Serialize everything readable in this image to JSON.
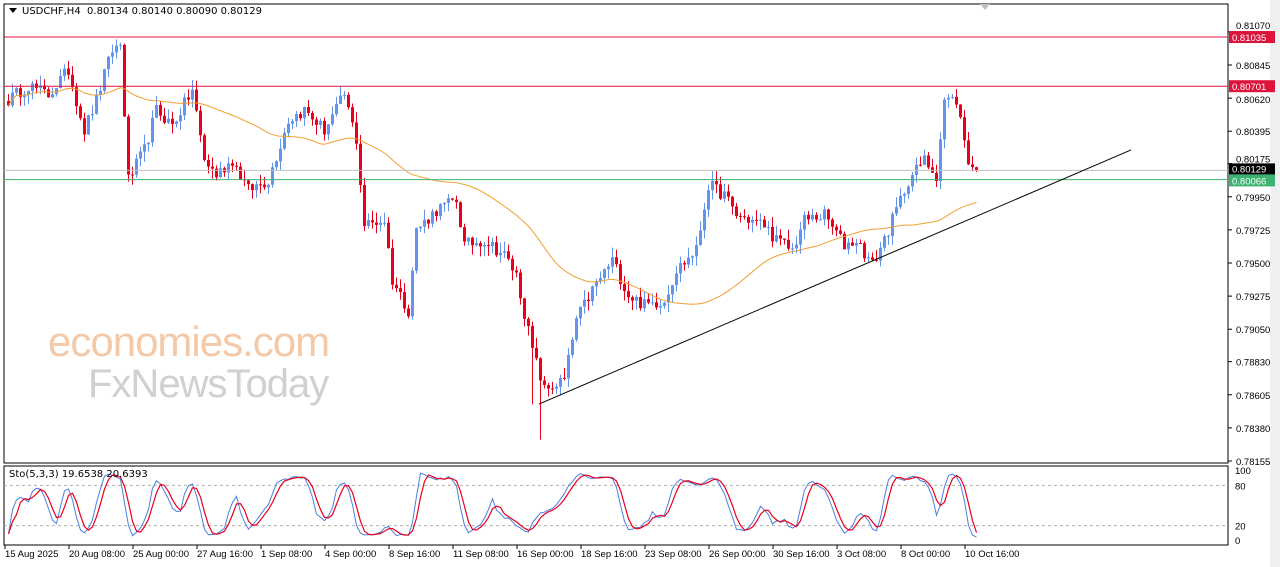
{
  "header": {
    "symbol": "USDCHF,H4",
    "ohlc": "0.80134 0.80140 0.80090 0.80129"
  },
  "stochastic": {
    "label": "Sto(5,3,3) 19.6538 20.6393",
    "levels": [
      "100",
      "80",
      "20",
      "0"
    ]
  },
  "watermark": {
    "line1": "economies.com",
    "line2": "FxNewsToday"
  },
  "colors": {
    "up": "#6495ed",
    "down": "#e8001c",
    "ma": "#f0a030",
    "resistance": "#dc143c",
    "support": "#3cb371",
    "trendline": "#000000",
    "sto_main": "#4a7fe0",
    "sto_signal": "#e8001c"
  },
  "chart_data": {
    "type": "candlestick",
    "symbol": "USDCHF",
    "timeframe": "H4",
    "y_ticks": [
      "0.81070",
      "0.80845",
      "0.80620",
      "0.80395",
      "0.80175",
      "0.79950",
      "0.79725",
      "0.79500",
      "0.79275",
      "0.79050",
      "0.78830",
      "0.78605",
      "0.78380",
      "0.78155"
    ],
    "ylim": [
      0.7812,
      0.8115
    ],
    "x_tick_labels": [
      "15 Aug 2025",
      "20 Aug 08:00",
      "25 Aug 00:00",
      "27 Aug 16:00",
      "1 Sep 08:00",
      "4 Sep 00:00",
      "8 Sep 16:00",
      "11 Sep 08:00",
      "16 Sep 00:00",
      "18 Sep 16:00",
      "23 Sep 08:00",
      "26 Sep 00:00",
      "30 Sep 16:00",
      "3 Oct 08:00",
      "8 Oct 00:00",
      "10 Oct 16:00"
    ],
    "close_path_by_bar": [
      [
        0,
        0.80607
      ],
      [
        5,
        0.80709
      ],
      [
        10,
        0.80641
      ],
      [
        15,
        0.80811
      ],
      [
        19,
        0.80403
      ],
      [
        22,
        0.80607
      ],
      [
        26,
        0.80947
      ],
      [
        28,
        0.80981
      ],
      [
        30,
        0.80064
      ],
      [
        34,
        0.80268
      ],
      [
        37,
        0.80539
      ],
      [
        41,
        0.80437
      ],
      [
        46,
        0.80675
      ],
      [
        49,
        0.802
      ],
      [
        52,
        0.80098
      ],
      [
        56,
        0.802
      ],
      [
        60,
        0.79996
      ],
      [
        65,
        0.80064
      ],
      [
        70,
        0.80471
      ],
      [
        74,
        0.80539
      ],
      [
        79,
        0.80403
      ],
      [
        84,
        0.80641
      ],
      [
        87,
        0.80336
      ],
      [
        89,
        0.79758
      ],
      [
        94,
        0.79792
      ],
      [
        96,
        0.79385
      ],
      [
        100,
        0.79181
      ],
      [
        102,
        0.79724
      ],
      [
        107,
        0.7986
      ],
      [
        112,
        0.79928
      ],
      [
        114,
        0.79622
      ],
      [
        119,
        0.79656
      ],
      [
        124,
        0.79554
      ],
      [
        127,
        0.79418
      ],
      [
        131,
        0.78909
      ],
      [
        134,
        0.78637
      ],
      [
        139,
        0.78705
      ],
      [
        142,
        0.79113
      ],
      [
        146,
        0.79317
      ],
      [
        151,
        0.7952
      ],
      [
        155,
        0.79283
      ],
      [
        159,
        0.79215
      ],
      [
        164,
        0.79249
      ],
      [
        167,
        0.79452
      ],
      [
        172,
        0.79588
      ],
      [
        175,
        0.8003
      ],
      [
        179,
        0.79962
      ],
      [
        182,
        0.79826
      ],
      [
        189,
        0.79758
      ],
      [
        192,
        0.79656
      ],
      [
        196,
        0.79588
      ],
      [
        199,
        0.79792
      ],
      [
        204,
        0.79826
      ],
      [
        209,
        0.79622
      ],
      [
        212,
        0.79656
      ],
      [
        216,
        0.79486
      ],
      [
        220,
        0.79724
      ],
      [
        225,
        0.80064
      ],
      [
        229,
        0.802
      ],
      [
        232,
        0.80098
      ],
      [
        234,
        0.80607
      ],
      [
        237,
        0.80607
      ],
      [
        240,
        0.802
      ],
      [
        242,
        0.80118
      ]
    ],
    "last_price": "0.80129",
    "horizontal_levels": [
      {
        "price": 0.81035,
        "label": "0.81035",
        "kind": "resistance"
      },
      {
        "price": 0.80701,
        "label": "0.80701",
        "kind": "resistance"
      },
      {
        "price": 0.80066,
        "label": "0.80066",
        "kind": "support"
      }
    ],
    "trendline": {
      "from": [
        133,
        0.78542
      ],
      "to": [
        281,
        0.80268
      ]
    },
    "moving_average_period": 50,
    "stochastic": {
      "k": 5,
      "d": 3,
      "slowing": 3,
      "k_last": 19.6538,
      "d_last": 20.6393,
      "levels": [
        80,
        20
      ],
      "ylim": [
        0,
        100
      ]
    }
  }
}
